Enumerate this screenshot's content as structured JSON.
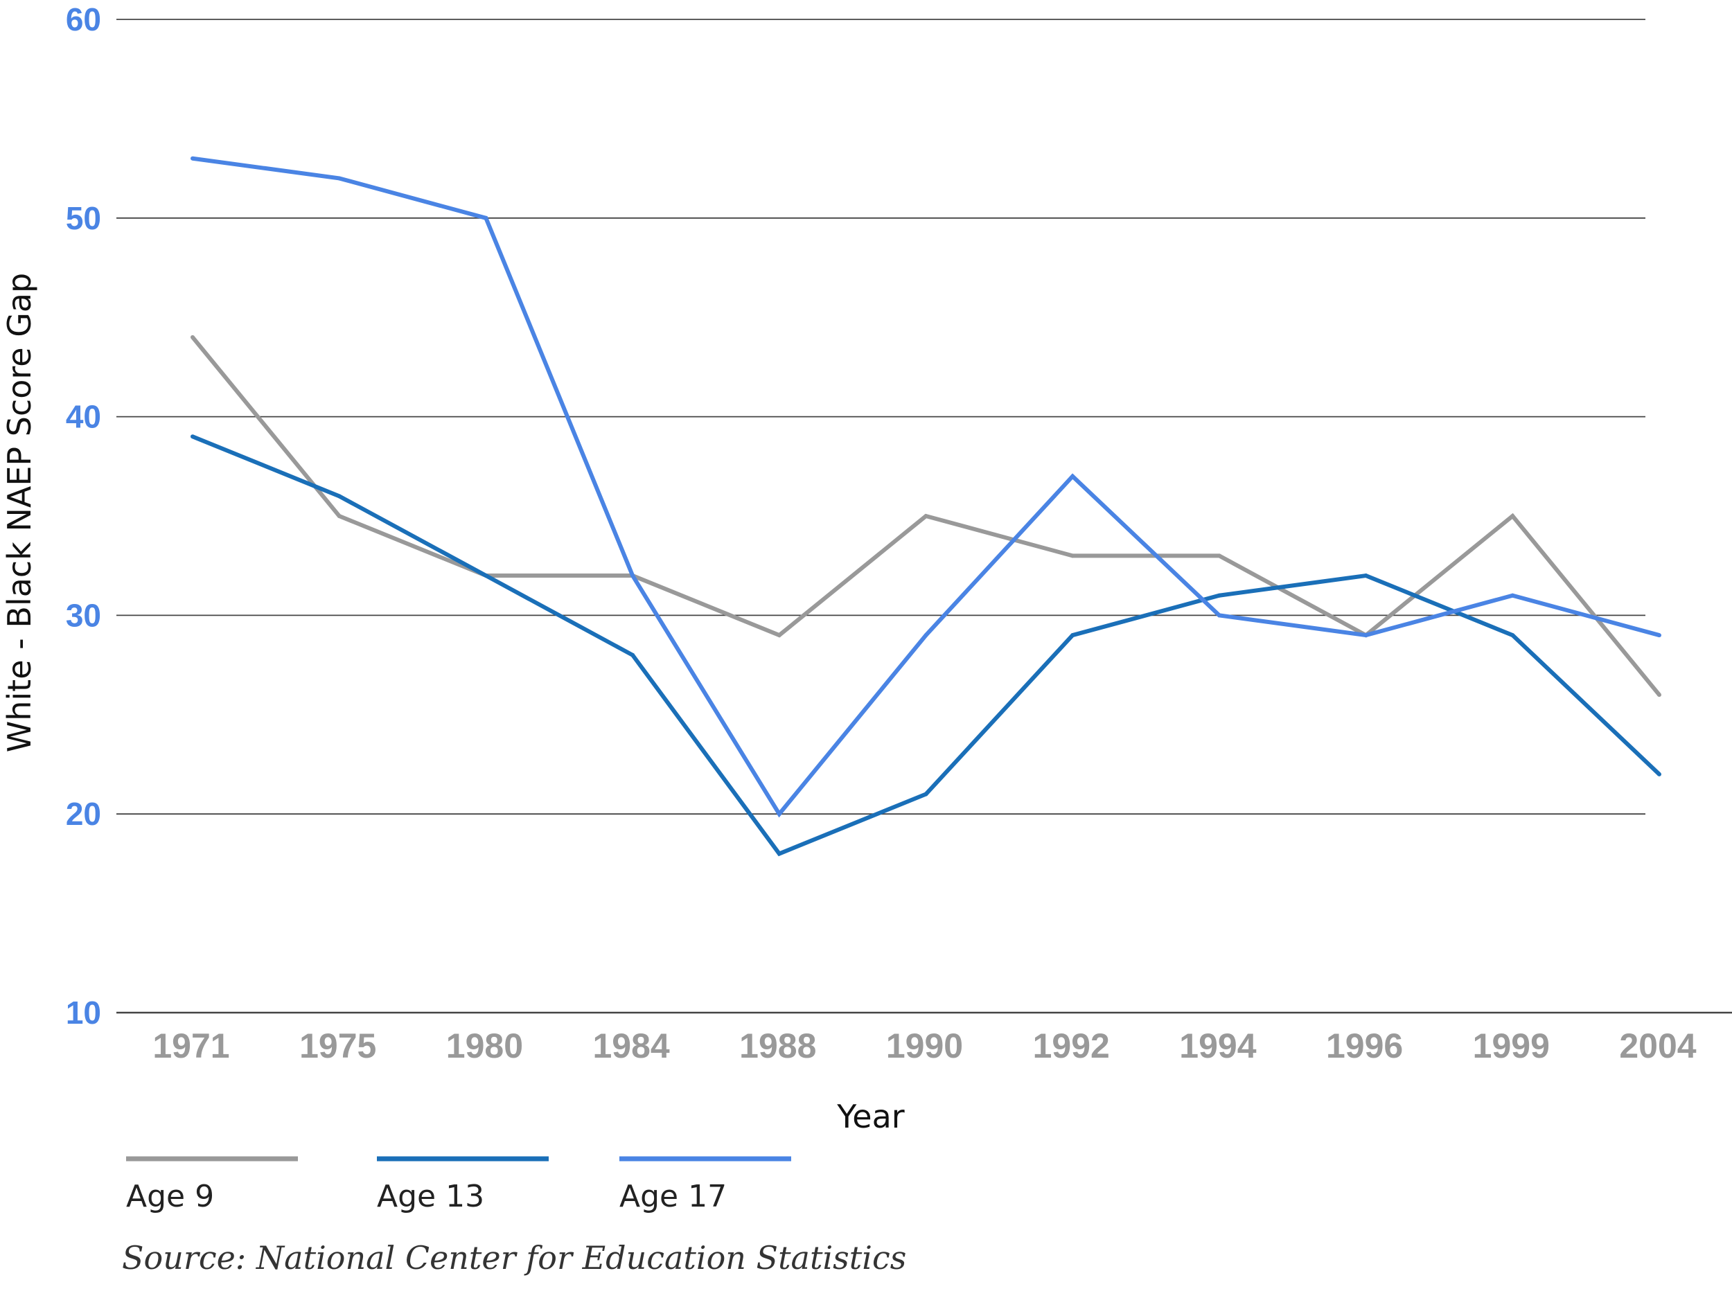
{
  "chart_data": {
    "type": "line",
    "title": "",
    "xlabel": "Year",
    "ylabel": "White - Black NAEP Score Gap",
    "categories": [
      "1971",
      "1975",
      "1980",
      "1984",
      "1988",
      "1990",
      "1992",
      "1994",
      "1996",
      "1999",
      "2004"
    ],
    "ylim": [
      10,
      60
    ],
    "yticks": [
      "10",
      "20",
      "30",
      "40",
      "50",
      "60"
    ],
    "grid": true,
    "legend_placement": "bottom-left",
    "series": [
      {
        "name": "Age 9",
        "color": "#999999",
        "values": [
          44,
          35,
          32,
          32,
          29,
          35,
          33,
          33,
          29,
          35,
          26
        ]
      },
      {
        "name": "Age 13",
        "color": "#1a6fb8",
        "values": [
          39,
          36,
          32,
          28,
          18,
          21,
          29,
          31,
          32,
          29,
          22
        ]
      },
      {
        "name": "Age 17",
        "color": "#4a84e4",
        "values": [
          53,
          52,
          50,
          32,
          20,
          29,
          37,
          30,
          29,
          31,
          29
        ]
      }
    ],
    "colors": {
      "ytick": "#4a84e4",
      "xtick": "#999999",
      "grid": "#444444"
    }
  },
  "source": "Source: National Center for Education Statistics"
}
